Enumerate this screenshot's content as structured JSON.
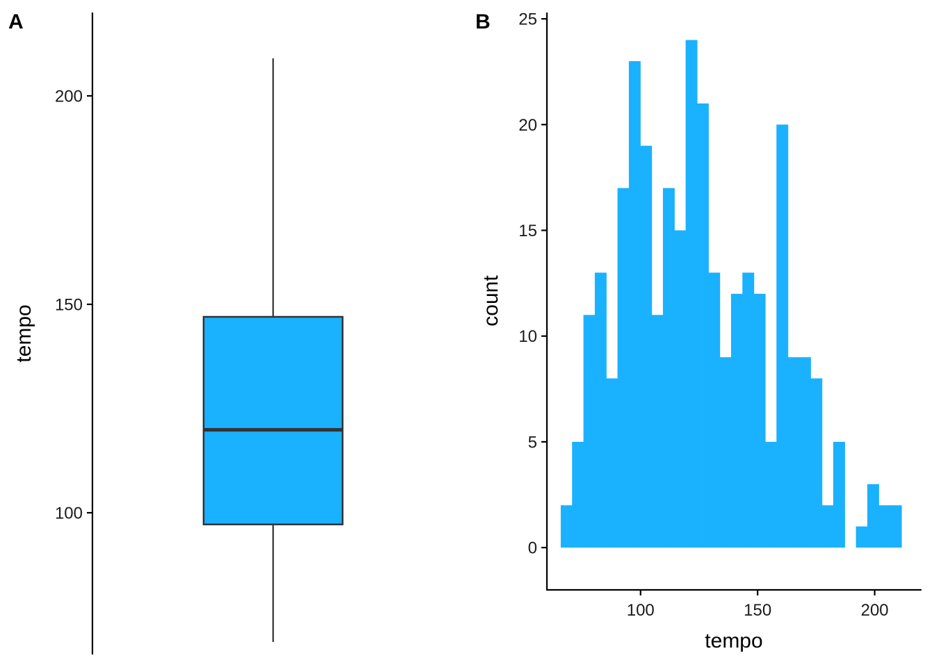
{
  "colors": {
    "fill": "#1ab1ff",
    "outline": "#333333",
    "axis": "#000000"
  },
  "chart_data": [
    {
      "type": "box",
      "panel_tag": "A",
      "ylabel": "tempo",
      "xlabel": "",
      "ylim": [
        66,
        220
      ],
      "yticks": [
        100,
        150,
        200
      ],
      "box": {
        "whisker_low": 69,
        "q1": 97.2,
        "median": 119.9,
        "q3": 147,
        "whisker_high": 209
      },
      "grid": false,
      "legend": "none"
    },
    {
      "type": "bar",
      "subtype": "histogram",
      "panel_tag": "B",
      "xlabel": "tempo",
      "ylabel": "count",
      "xlim": [
        60,
        220
      ],
      "ylim": [
        -2,
        25.3
      ],
      "xticks": [
        100,
        150,
        200
      ],
      "yticks": [
        0,
        5,
        10,
        15,
        20,
        25
      ],
      "bin_width": 4.85,
      "first_bin_start": 65.9,
      "counts": [
        2,
        5,
        11,
        13,
        8,
        17,
        23,
        19,
        11,
        17,
        15,
        24,
        21,
        13,
        9,
        12,
        13,
        12,
        5,
        20,
        9,
        9,
        8,
        2,
        5,
        0,
        1,
        3,
        2,
        2
      ],
      "grid": false,
      "legend": "none"
    }
  ]
}
